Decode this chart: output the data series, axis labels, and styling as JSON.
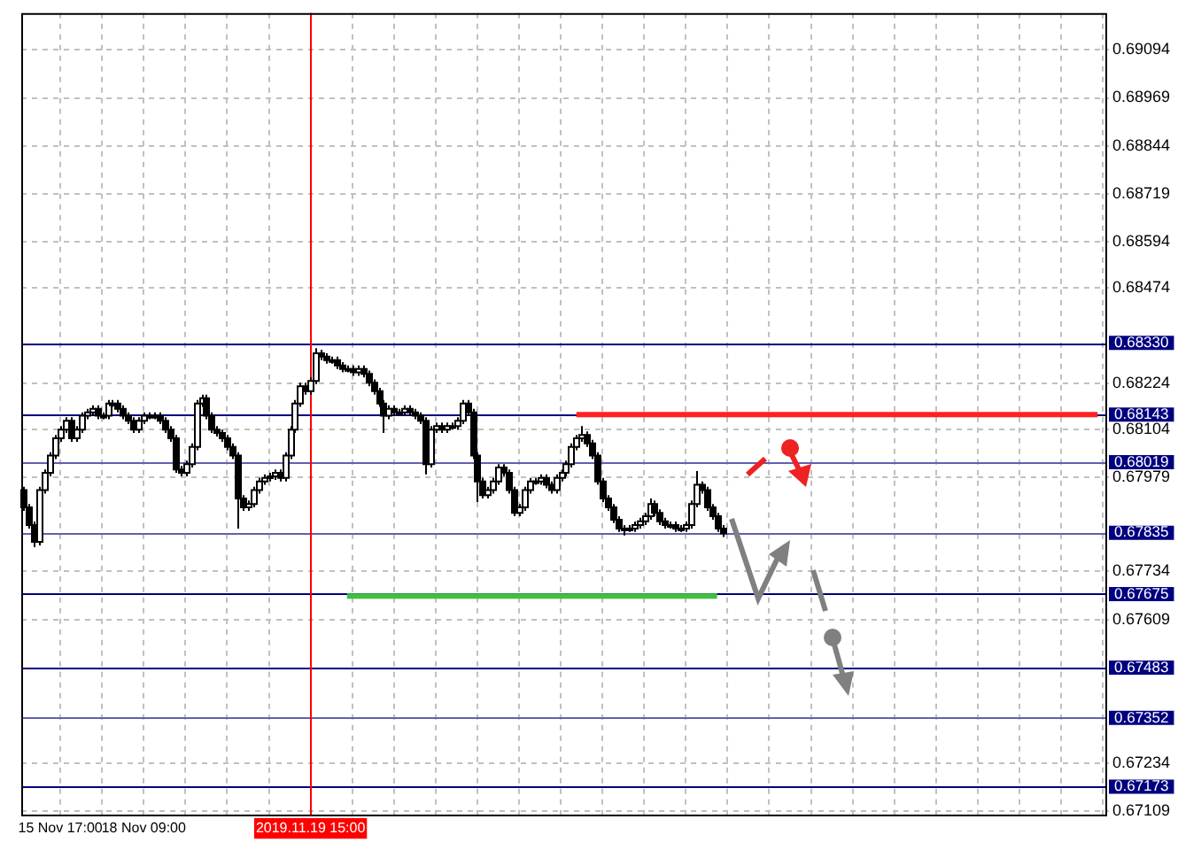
{
  "chart_data": {
    "type": "candlestick",
    "categories": [
      null,
      null,
      null,
      null,
      null,
      null,
      null,
      "15 Nov 17:00",
      null,
      null,
      null,
      null,
      null,
      null,
      null,
      null,
      null,
      null,
      null,
      null,
      null,
      null,
      null,
      "18 Nov 09:00",
      null,
      null,
      null,
      null,
      null,
      null,
      null,
      null,
      null,
      null,
      null,
      null,
      null,
      null,
      null,
      null,
      null,
      null,
      null,
      null,
      null,
      null,
      null,
      null,
      null,
      null,
      null,
      null,
      null,
      null,
      null,
      "2019.11.19 15:00",
      null,
      null,
      null,
      null,
      null,
      null,
      null,
      null,
      null,
      null,
      null,
      null,
      null,
      null,
      null,
      null,
      null,
      null,
      null,
      null,
      null,
      null,
      null,
      null,
      null,
      null,
      null,
      null,
      null,
      null,
      null,
      null,
      null,
      null,
      null,
      null,
      null,
      null,
      null,
      null,
      null,
      null,
      null,
      null,
      null,
      null,
      null,
      null,
      null,
      null,
      null,
      null,
      null,
      null,
      null,
      null,
      null,
      null,
      null,
      null,
      null,
      null,
      null,
      null,
      null,
      null,
      null,
      null,
      null,
      null,
      null,
      null,
      null,
      null,
      null,
      null,
      null,
      null,
      null,
      null,
      null,
      null,
      null,
      null,
      null,
      null,
      null,
      null,
      null,
      null,
      null,
      null,
      null,
      null,
      null,
      null,
      null,
      null,
      null,
      null,
      null,
      null,
      null,
      null,
      null,
      null,
      null,
      null,
      null,
      null,
      null,
      null,
      null,
      null,
      null,
      null,
      null,
      null,
      null,
      null,
      null,
      null,
      null,
      null,
      null,
      null,
      null,
      null,
      null,
      null,
      null,
      null,
      null,
      null,
      null,
      null,
      null,
      null,
      null,
      null,
      null,
      null,
      null,
      null,
      null,
      null,
      null,
      null,
      null,
      null,
      null,
      null
    ],
    "ohlc": [
      [
        0.67946,
        0.67955,
        0.67892,
        0.67901
      ],
      [
        0.67901,
        0.6791,
        0.67846,
        0.67855
      ],
      [
        0.67855,
        0.67864,
        0.67797,
        0.67811
      ],
      [
        0.67811,
        0.67955,
        0.67802,
        0.67946
      ],
      [
        0.67946,
        0.68,
        0.67937,
        0.67991
      ],
      [
        0.67991,
        0.68045,
        0.67982,
        0.68036
      ],
      [
        0.68036,
        0.6809,
        0.68027,
        0.68081
      ],
      [
        0.68081,
        0.68113,
        0.68072,
        0.68104
      ],
      [
        0.68104,
        0.68136,
        0.68095,
        0.68127
      ],
      [
        0.68127,
        0.68136,
        0.68072,
        0.68081
      ],
      [
        0.68081,
        0.68113,
        0.68072,
        0.68104
      ],
      [
        0.68104,
        0.68149,
        0.68095,
        0.6814
      ],
      [
        0.6814,
        0.68158,
        0.68131,
        0.68149
      ],
      [
        0.68149,
        0.68167,
        0.6814,
        0.68158
      ],
      [
        0.68158,
        0.68167,
        0.68131,
        0.6814
      ],
      [
        0.6814,
        0.68149,
        0.68131,
        0.6814
      ],
      [
        0.6814,
        0.68181,
        0.68131,
        0.68172
      ],
      [
        0.68172,
        0.68181,
        0.68163,
        0.68172
      ],
      [
        0.68172,
        0.68181,
        0.68149,
        0.68158
      ],
      [
        0.68158,
        0.68167,
        0.68131,
        0.6814
      ],
      [
        0.6814,
        0.68149,
        0.68118,
        0.68127
      ],
      [
        0.68127,
        0.68136,
        0.68095,
        0.68104
      ],
      [
        0.68104,
        0.68136,
        0.68095,
        0.68127
      ],
      [
        0.68127,
        0.68149,
        0.68118,
        0.6814
      ],
      [
        0.6814,
        0.68149,
        0.68131,
        0.6814
      ],
      [
        0.6814,
        0.68149,
        0.68131,
        0.6814
      ],
      [
        0.6814,
        0.68149,
        0.68118,
        0.68127
      ],
      [
        0.68127,
        0.68136,
        0.68095,
        0.68104
      ],
      [
        0.68104,
        0.68113,
        0.68072,
        0.68081
      ],
      [
        0.68081,
        0.6809,
        0.67991,
        0.68
      ],
      [
        0.68,
        0.68009,
        0.67982,
        0.67991
      ],
      [
        0.67991,
        0.68023,
        0.67982,
        0.68014
      ],
      [
        0.68014,
        0.68068,
        0.68005,
        0.68059
      ],
      [
        0.68059,
        0.68181,
        0.6805,
        0.68172
      ],
      [
        0.68172,
        0.68195,
        0.68163,
        0.68186
      ],
      [
        0.68186,
        0.68195,
        0.68131,
        0.6814
      ],
      [
        0.6814,
        0.68149,
        0.68095,
        0.68104
      ],
      [
        0.68104,
        0.68113,
        0.68086,
        0.68095
      ],
      [
        0.68095,
        0.68104,
        0.68072,
        0.68081
      ],
      [
        0.68081,
        0.6809,
        0.6805,
        0.68059
      ],
      [
        0.68059,
        0.68068,
        0.68027,
        0.68036
      ],
      [
        0.68036,
        0.68045,
        0.67846,
        0.67924
      ],
      [
        0.67924,
        0.67933,
        0.67892,
        0.67901
      ],
      [
        0.67901,
        0.67919,
        0.67892,
        0.6791
      ],
      [
        0.6791,
        0.67955,
        0.67901,
        0.67946
      ],
      [
        0.67946,
        0.67978,
        0.67937,
        0.67969
      ],
      [
        0.67969,
        0.67987,
        0.6796,
        0.67978
      ],
      [
        0.67978,
        0.67991,
        0.67969,
        0.67982
      ],
      [
        0.67982,
        0.68,
        0.67973,
        0.67991
      ],
      [
        0.67991,
        0.68,
        0.67969,
        0.67978
      ],
      [
        0.67978,
        0.68045,
        0.67969,
        0.68036
      ],
      [
        0.68036,
        0.68113,
        0.68027,
        0.68104
      ],
      [
        0.68104,
        0.68181,
        0.68095,
        0.68172
      ],
      [
        0.68172,
        0.68226,
        0.68163,
        0.68217
      ],
      [
        0.68217,
        0.68226,
        0.68195,
        0.68204
      ],
      [
        0.68204,
        0.6824,
        0.68195,
        0.68231
      ],
      [
        0.68231,
        0.68316,
        0.68222,
        0.68303
      ],
      [
        0.68303,
        0.68312,
        0.68285,
        0.68294
      ],
      [
        0.68294,
        0.68303,
        0.68276,
        0.68285
      ],
      [
        0.68285,
        0.68294,
        0.68276,
        0.68285
      ],
      [
        0.68285,
        0.68294,
        0.68262,
        0.68271
      ],
      [
        0.68271,
        0.6828,
        0.68253,
        0.68262
      ],
      [
        0.68262,
        0.68271,
        0.68253,
        0.68262
      ],
      [
        0.68262,
        0.68271,
        0.68244,
        0.68253
      ],
      [
        0.68253,
        0.68271,
        0.68244,
        0.68262
      ],
      [
        0.68262,
        0.68271,
        0.6824,
        0.68249
      ],
      [
        0.68249,
        0.68258,
        0.68217,
        0.68226
      ],
      [
        0.68226,
        0.68235,
        0.68195,
        0.68204
      ],
      [
        0.68204,
        0.68213,
        0.68163,
        0.68172
      ],
      [
        0.68172,
        0.68181,
        0.68095,
        0.6814
      ],
      [
        0.6814,
        0.68167,
        0.68131,
        0.68158
      ],
      [
        0.68158,
        0.68167,
        0.6814,
        0.68149
      ],
      [
        0.68149,
        0.68158,
        0.6814,
        0.68149
      ],
      [
        0.68149,
        0.68167,
        0.6814,
        0.68158
      ],
      [
        0.68158,
        0.68167,
        0.6814,
        0.68149
      ],
      [
        0.68149,
        0.68158,
        0.68131,
        0.6814
      ],
      [
        0.6814,
        0.68149,
        0.68118,
        0.68127
      ],
      [
        0.68127,
        0.68136,
        0.67987,
        0.68014
      ],
      [
        0.68014,
        0.68113,
        0.68005,
        0.68104
      ],
      [
        0.68104,
        0.68122,
        0.68095,
        0.68113
      ],
      [
        0.68113,
        0.68122,
        0.68095,
        0.68104
      ],
      [
        0.68104,
        0.68122,
        0.68095,
        0.68113
      ],
      [
        0.68113,
        0.68122,
        0.68104,
        0.68113
      ],
      [
        0.68113,
        0.68136,
        0.68104,
        0.68127
      ],
      [
        0.68127,
        0.68181,
        0.68118,
        0.68172
      ],
      [
        0.68172,
        0.68181,
        0.6814,
        0.68149
      ],
      [
        0.68149,
        0.68158,
        0.68027,
        0.68036
      ],
      [
        0.68036,
        0.68045,
        0.67915,
        0.67969
      ],
      [
        0.67969,
        0.67978,
        0.67924,
        0.67933
      ],
      [
        0.67933,
        0.67955,
        0.67924,
        0.67946
      ],
      [
        0.67946,
        0.67978,
        0.67937,
        0.67969
      ],
      [
        0.67969,
        0.68014,
        0.6796,
        0.68005
      ],
      [
        0.68005,
        0.68014,
        0.67982,
        0.67991
      ],
      [
        0.67991,
        0.68,
        0.67937,
        0.67946
      ],
      [
        0.67946,
        0.67955,
        0.67878,
        0.67887
      ],
      [
        0.67887,
        0.6791,
        0.67878,
        0.67901
      ],
      [
        0.67901,
        0.67955,
        0.67892,
        0.67946
      ],
      [
        0.67946,
        0.67978,
        0.67937,
        0.67969
      ],
      [
        0.67969,
        0.67978,
        0.6796,
        0.67969
      ],
      [
        0.67969,
        0.67987,
        0.6796,
        0.67978
      ],
      [
        0.67978,
        0.67987,
        0.67951,
        0.6796
      ],
      [
        0.6796,
        0.67969,
        0.67937,
        0.67946
      ],
      [
        0.67946,
        0.67987,
        0.67937,
        0.67978
      ],
      [
        0.67978,
        0.68,
        0.67969,
        0.67991
      ],
      [
        0.67991,
        0.68023,
        0.67982,
        0.68014
      ],
      [
        0.68014,
        0.68068,
        0.68005,
        0.68059
      ],
      [
        0.68059,
        0.6809,
        0.6805,
        0.68081
      ],
      [
        0.68081,
        0.68113,
        0.68072,
        0.6809
      ],
      [
        0.6809,
        0.68099,
        0.68059,
        0.68068
      ],
      [
        0.68068,
        0.68077,
        0.68027,
        0.68036
      ],
      [
        0.68036,
        0.68045,
        0.6796,
        0.67969
      ],
      [
        0.67969,
        0.67978,
        0.67915,
        0.67924
      ],
      [
        0.67924,
        0.67933,
        0.67892,
        0.67901
      ],
      [
        0.67901,
        0.6791,
        0.6786,
        0.67869
      ],
      [
        0.67869,
        0.67878,
        0.67837,
        0.67846
      ],
      [
        0.67846,
        0.67855,
        0.67828,
        0.67846
      ],
      [
        0.67846,
        0.67855,
        0.67837,
        0.67846
      ],
      [
        0.67846,
        0.67864,
        0.67837,
        0.67855
      ],
      [
        0.67855,
        0.67874,
        0.67846,
        0.67865
      ],
      [
        0.67865,
        0.67887,
        0.67855,
        0.67878
      ],
      [
        0.67878,
        0.67924,
        0.67869,
        0.6791
      ],
      [
        0.6791,
        0.67919,
        0.67878,
        0.67887
      ],
      [
        0.67887,
        0.67896,
        0.67855,
        0.67865
      ],
      [
        0.67865,
        0.67874,
        0.67846,
        0.67855
      ],
      [
        0.67855,
        0.67864,
        0.67846,
        0.67855
      ],
      [
        0.67855,
        0.67864,
        0.67837,
        0.67846
      ],
      [
        0.67846,
        0.67855,
        0.67837,
        0.67846
      ],
      [
        0.67846,
        0.67864,
        0.67837,
        0.67855
      ],
      [
        0.67855,
        0.67919,
        0.67846,
        0.6791
      ],
      [
        0.6791,
        0.67996,
        0.67901,
        0.6796
      ],
      [
        0.6796,
        0.67969,
        0.67937,
        0.67946
      ],
      [
        0.67946,
        0.67955,
        0.67892,
        0.67901
      ],
      [
        0.67901,
        0.6791,
        0.67869,
        0.67878
      ],
      [
        0.67878,
        0.67887,
        0.67837,
        0.67846
      ],
      [
        0.67846,
        0.67855,
        0.67824,
        0.67833
      ],
      null,
      null,
      null,
      null,
      null,
      null,
      null,
      null,
      null,
      null,
      null,
      null,
      null,
      null,
      null,
      null,
      null,
      null,
      null,
      null,
      null,
      null,
      null,
      null,
      null,
      null,
      null,
      null,
      null,
      null,
      null,
      null,
      null,
      null,
      null,
      null,
      null,
      null,
      null,
      null,
      null,
      null,
      null,
      null,
      null,
      null,
      null,
      null,
      null,
      null,
      null,
      null,
      null,
      null,
      null,
      null,
      null,
      null,
      null,
      null,
      null,
      null,
      null,
      null,
      null,
      null,
      null,
      null,
      null,
      null,
      null,
      null,
      null
    ],
    "series": [
      {
        "type": "line",
        "color": "#ff2020",
        "values": [
          null,
          null,
          null,
          null,
          null,
          null,
          null,
          null,
          null,
          null,
          null,
          null,
          null,
          null,
          null,
          null,
          null,
          null,
          null,
          null,
          null,
          null,
          null,
          null,
          null,
          null,
          null,
          null,
          null,
          null,
          null,
          null,
          null,
          null,
          null,
          null,
          null,
          null,
          null,
          null,
          null,
          null,
          null,
          null,
          null,
          null,
          null,
          null,
          null,
          null,
          null,
          null,
          null,
          null,
          null,
          null,
          null,
          null,
          null,
          null,
          null,
          null,
          null,
          null,
          null,
          null,
          null,
          null,
          null,
          null,
          null,
          null,
          null,
          null,
          null,
          null,
          null,
          null,
          null,
          null,
          null,
          null,
          null,
          null,
          null,
          null,
          null,
          null,
          null,
          null,
          null,
          null,
          null,
          null,
          null,
          null,
          null,
          null,
          null,
          null,
          null,
          null,
          null,
          null,
          null,
          null,
          0.68143,
          0.68143,
          0.68143,
          0.68143,
          0.68143,
          0.68143,
          0.68143,
          0.68143,
          0.68143,
          0.68143,
          0.68143,
          0.68143,
          0.68143,
          0.68143,
          0.68143,
          0.68143,
          0.68143,
          0.68143,
          0.68143,
          0.68143,
          0.68143,
          0.68143,
          0.68143,
          0.68143,
          0.68143,
          0.68143,
          0.68143,
          0.68143,
          0.68143,
          0.68143,
          0.68143,
          0.68143,
          0.68143,
          0.68143,
          0.68143,
          0.68143,
          0.68143,
          0.68143,
          0.68143,
          0.68143,
          0.68143,
          0.68143,
          0.68143,
          0.68143,
          0.68143,
          0.68143,
          0.68143,
          0.68143,
          0.68143,
          0.68143,
          0.68143,
          0.68143,
          0.68143,
          0.68143,
          0.68143,
          0.68143,
          0.68143,
          0.68143,
          0.68143,
          0.68143,
          0.68143,
          0.68143,
          0.68143,
          0.68143,
          0.68143,
          0.68143,
          0.68143,
          0.68143,
          0.68143,
          0.68143,
          0.68143,
          0.68143,
          0.68143,
          0.68143,
          0.68143,
          0.68143,
          0.68143,
          0.68143,
          0.68143,
          0.68143,
          0.68143,
          0.68143,
          0.68143,
          0.68143,
          0.68143,
          0.68143,
          0.68143,
          0.68143,
          0.68143,
          0.68143,
          0.68143,
          0.68143,
          0.68143,
          0.68143,
          0.68143,
          0.68143,
          0.68143,
          0.68143,
          0.68143,
          0.68143,
          0.68143,
          null
        ]
      },
      {
        "type": "line",
        "color": "#40c040",
        "values": [
          null,
          null,
          null,
          null,
          null,
          null,
          null,
          null,
          null,
          null,
          null,
          null,
          null,
          null,
          null,
          null,
          null,
          null,
          null,
          null,
          null,
          null,
          null,
          null,
          null,
          null,
          null,
          null,
          null,
          null,
          null,
          null,
          null,
          null,
          null,
          null,
          null,
          null,
          null,
          null,
          null,
          null,
          null,
          null,
          null,
          null,
          null,
          null,
          null,
          null,
          null,
          null,
          null,
          null,
          null,
          null,
          null,
          null,
          null,
          null,
          null,
          null,
          0.6767,
          0.6767,
          0.6767,
          0.6767,
          0.6767,
          0.6767,
          0.6767,
          0.6767,
          0.6767,
          0.6767,
          0.6767,
          0.6767,
          0.6767,
          0.6767,
          0.6767,
          0.6767,
          0.6767,
          0.6767,
          0.6767,
          0.6767,
          0.6767,
          0.6767,
          0.6767,
          0.6767,
          0.6767,
          0.6767,
          0.6767,
          0.6767,
          0.6767,
          0.6767,
          0.6767,
          0.6767,
          0.6767,
          0.6767,
          0.6767,
          0.6767,
          0.6767,
          0.6767,
          0.6767,
          0.6767,
          0.6767,
          0.6767,
          0.6767,
          0.6767,
          0.6767,
          0.6767,
          0.6767,
          0.6767,
          0.6767,
          0.6767,
          0.6767,
          0.6767,
          0.6767,
          0.6767,
          0.6767,
          0.6767,
          0.6767,
          0.6767,
          0.6767,
          0.6767,
          0.6767,
          0.6767,
          0.6767,
          0.6767,
          0.6767,
          0.6767,
          0.6767,
          0.6767,
          0.6767,
          0.6767,
          0.6767,
          0.6767,
          null,
          null,
          null,
          null,
          null,
          null,
          null,
          null,
          null,
          null,
          null,
          null,
          null,
          null,
          null,
          null,
          null,
          null,
          null,
          null,
          null,
          null,
          null,
          null,
          null,
          null,
          null,
          null,
          null,
          null,
          null,
          null,
          null,
          null,
          null,
          null,
          null,
          null,
          null,
          null,
          null,
          null,
          null,
          null,
          null,
          null,
          null,
          null,
          null,
          null,
          null,
          null,
          null,
          null,
          null,
          null,
          null,
          null,
          null,
          null,
          null,
          null,
          null,
          null,
          null,
          null,
          null,
          null,
          null,
          null,
          null,
          null,
          null,
          null
        ]
      }
    ],
    "ylim": [
      0.671,
      0.6919
    ],
    "yticks": [
      0.69094,
      0.68969,
      0.68844,
      0.68719,
      0.68594,
      0.68474,
      0.68224,
      0.68104,
      0.67979,
      0.67734,
      0.67609,
      0.67234,
      0.67109
    ],
    "ref_lines": [
      {
        "axis": "y",
        "value": 0.6833,
        "label": "0.68330",
        "color": "#000080"
      },
      {
        "axis": "y",
        "value": 0.68143,
        "label": "0.68143",
        "color": "#000080"
      },
      {
        "axis": "y",
        "value": 0.68019,
        "label": "0.68019",
        "color": "#6060b0"
      },
      {
        "axis": "y",
        "value": 0.67835,
        "label": "0.67835",
        "color": "#6060b0"
      },
      {
        "axis": "y",
        "value": 0.67675,
        "label": "0.67675",
        "color": "#000080"
      },
      {
        "axis": "y",
        "value": 0.67483,
        "label": "0.67483",
        "color": "#000080"
      },
      {
        "axis": "y",
        "value": 0.67352,
        "label": "0.67352",
        "color": "#6060b0"
      },
      {
        "axis": "y",
        "value": 0.67173,
        "label": "0.67173",
        "color": "#000080"
      },
      {
        "axis": "x",
        "value": "2019.11.19 15:00",
        "color": "#ff0000"
      }
    ],
    "grid": true,
    "legend": false
  }
}
